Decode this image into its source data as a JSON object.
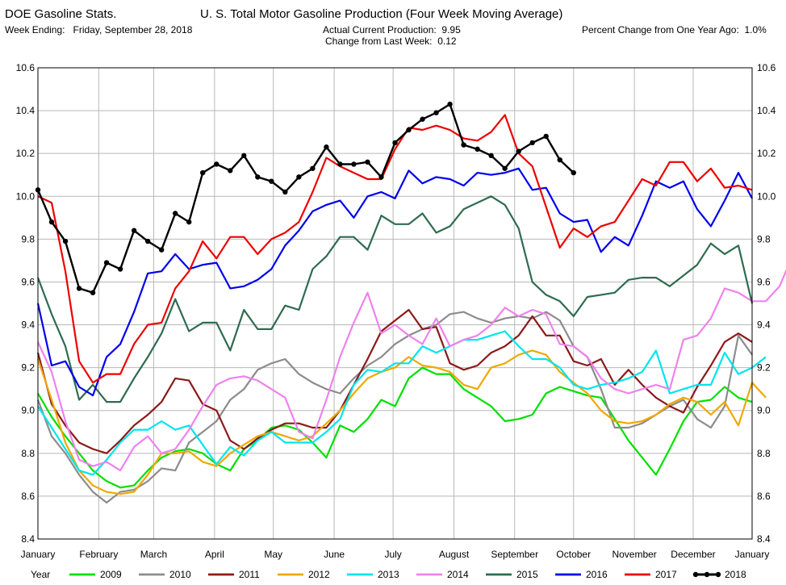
{
  "header": {
    "source": "DOE Gasoline Stats.",
    "week_label": "Week Ending:",
    "week_value": "Friday, September 28, 2018",
    "title": "U. S. Total Motor Gasoline Production (Four Week Moving Average)",
    "production_label": "Actual Current Production:",
    "production_value": "9.95",
    "change_label": "Change from Last Week:",
    "change_value": "0.12",
    "pct_label": "Percent Change from One Year Ago:",
    "pct_value": "1.0%"
  },
  "chart_data": {
    "type": "line",
    "title": "U. S. Total Motor Gasoline Production (Four Week Moving Average)",
    "x_unit": "week of year",
    "x_domain": [
      1,
      53
    ],
    "ylim": [
      8.4,
      10.6
    ],
    "y_ticks": [
      "8.4",
      "8.6",
      "8.8",
      "9.0",
      "9.2",
      "9.4",
      "9.6",
      "9.8",
      "10.0",
      "10.2",
      "10.4",
      "10.6"
    ],
    "y_tick_values": [
      8.4,
      8.6,
      8.8,
      9.0,
      9.2,
      9.4,
      9.6,
      9.8,
      10.0,
      10.2,
      10.4,
      10.6
    ],
    "months": [
      "January",
      "February",
      "March",
      "April",
      "May",
      "June",
      "July",
      "August",
      "September",
      "October",
      "November",
      "December",
      "January"
    ],
    "month_weeks": [
      1,
      5.43,
      9.43,
      13.86,
      18.14,
      22.57,
      26.86,
      31.29,
      35.71,
      40,
      44.43,
      48.71,
      53
    ],
    "grid": true,
    "legend_title": "Year",
    "legend_position": "bottom",
    "series": [
      {
        "name": "2009",
        "color": "#00e000",
        "markers": false,
        "width": 2.2,
        "values": [
          9.08,
          8.97,
          8.88,
          8.8,
          8.72,
          8.67,
          8.64,
          8.65,
          8.72,
          8.78,
          8.81,
          8.82,
          8.8,
          8.75,
          8.72,
          8.82,
          8.86,
          8.92,
          8.93,
          8.91,
          8.85,
          8.78,
          8.93,
          8.9,
          8.96,
          9.05,
          9.02,
          9.15,
          9.2,
          9.17,
          9.17,
          9.1,
          9.06,
          9.02,
          8.95,
          8.96,
          8.98,
          9.08,
          9.11,
          9.09,
          9.07,
          9.06,
          8.96,
          8.86,
          8.78,
          8.7,
          8.82,
          8.95,
          9.04,
          9.05,
          9.11,
          9.06,
          9.04
        ]
      },
      {
        "name": "2010",
        "color": "#8c8c8c",
        "markers": false,
        "width": 2.2,
        "values": [
          9.05,
          8.88,
          8.8,
          8.7,
          8.62,
          8.57,
          8.62,
          8.63,
          8.67,
          8.73,
          8.72,
          8.85,
          8.9,
          8.95,
          9.05,
          9.1,
          9.19,
          9.22,
          9.24,
          9.17,
          9.13,
          9.1,
          9.08,
          9.15,
          9.21,
          9.25,
          9.31,
          9.35,
          9.38,
          9.4,
          9.45,
          9.46,
          9.43,
          9.41,
          9.43,
          9.44,
          9.43,
          9.46,
          9.42,
          9.3,
          9.25,
          9.1,
          8.92,
          8.92,
          8.94,
          8.98,
          9.02,
          9.05,
          8.96,
          8.92,
          9.02,
          9.35,
          9.26
        ]
      },
      {
        "name": "2011",
        "color": "#8b1a1a",
        "markers": false,
        "width": 2.2,
        "values": [
          9.27,
          9.03,
          8.93,
          8.85,
          8.82,
          8.8,
          8.86,
          8.93,
          8.98,
          9.04,
          9.15,
          9.14,
          9.03,
          9.0,
          8.86,
          8.82,
          8.87,
          8.91,
          8.94,
          8.94,
          8.92,
          8.92,
          9.0,
          9.12,
          9.24,
          9.37,
          9.42,
          9.47,
          9.38,
          9.39,
          9.22,
          9.19,
          9.21,
          9.27,
          9.3,
          9.35,
          9.44,
          9.35,
          9.35,
          9.23,
          9.21,
          9.24,
          9.12,
          9.19,
          9.12,
          9.06,
          9.02,
          8.99,
          9.11,
          9.21,
          9.32,
          9.36,
          9.32
        ]
      },
      {
        "name": "2012",
        "color": "#f0a800",
        "markers": false,
        "width": 2.2,
        "values": [
          9.24,
          9.05,
          8.85,
          8.72,
          8.65,
          8.62,
          8.61,
          8.62,
          8.7,
          8.8,
          8.8,
          8.81,
          8.76,
          8.74,
          8.8,
          8.84,
          8.88,
          8.9,
          8.88,
          8.86,
          8.88,
          8.94,
          9.0,
          9.08,
          9.15,
          9.18,
          9.2,
          9.25,
          9.21,
          9.2,
          9.18,
          9.12,
          9.1,
          9.2,
          9.22,
          9.26,
          9.28,
          9.26,
          9.18,
          9.13,
          9.08,
          9.0,
          8.95,
          8.94,
          8.95,
          8.98,
          9.03,
          9.06,
          9.04,
          8.98,
          9.04,
          8.93,
          9.13,
          9.06
        ]
      },
      {
        "name": "2013",
        "color": "#00e5ee",
        "markers": false,
        "width": 2.2,
        "values": [
          9.02,
          8.92,
          8.82,
          8.72,
          8.7,
          8.77,
          8.85,
          8.91,
          8.91,
          8.95,
          8.91,
          8.93,
          8.84,
          8.75,
          8.83,
          8.79,
          8.86,
          8.9,
          8.85,
          8.85,
          8.85,
          8.9,
          8.96,
          9.12,
          9.19,
          9.18,
          9.22,
          9.22,
          9.3,
          9.27,
          9.3,
          9.33,
          9.33,
          9.35,
          9.37,
          9.3,
          9.24,
          9.24,
          9.2,
          9.12,
          9.1,
          9.12,
          9.13,
          9.15,
          9.18,
          9.28,
          9.08,
          9.1,
          9.12,
          9.12,
          9.27,
          9.17,
          9.2,
          9.25
        ]
      },
      {
        "name": "2014",
        "color": "#ee82ee",
        "markers": false,
        "width": 2.2,
        "values": [
          9.32,
          9.18,
          8.95,
          8.77,
          8.74,
          8.76,
          8.72,
          8.83,
          8.88,
          8.8,
          8.82,
          8.91,
          9.02,
          9.12,
          9.15,
          9.16,
          9.14,
          9.1,
          9.06,
          8.9,
          8.87,
          9.05,
          9.25,
          9.41,
          9.55,
          9.36,
          9.4,
          9.35,
          9.31,
          9.43,
          9.3,
          9.33,
          9.35,
          9.4,
          9.48,
          9.44,
          9.47,
          9.45,
          9.31,
          9.3,
          9.25,
          9.15,
          9.1,
          9.08,
          9.1,
          9.12,
          9.1,
          9.33,
          9.35,
          9.43,
          9.57,
          9.55,
          9.51,
          9.51,
          9.58,
          9.73
        ]
      },
      {
        "name": "2015",
        "color": "#2e6b4f",
        "markers": false,
        "width": 2.2,
        "values": [
          9.62,
          9.45,
          9.3,
          9.05,
          9.12,
          9.04,
          9.04,
          9.15,
          9.25,
          9.36,
          9.52,
          9.37,
          9.41,
          9.41,
          9.28,
          9.47,
          9.38,
          9.38,
          9.49,
          9.47,
          9.66,
          9.72,
          9.81,
          9.81,
          9.75,
          9.91,
          9.87,
          9.87,
          9.92,
          9.83,
          9.86,
          9.94,
          9.97,
          10.0,
          9.96,
          9.85,
          9.6,
          9.54,
          9.51,
          9.44,
          9.53,
          9.54,
          9.55,
          9.61,
          9.62,
          9.62,
          9.58,
          9.63,
          9.68,
          9.78,
          9.73,
          9.77,
          9.5
        ]
      },
      {
        "name": "2016",
        "color": "#0000ee",
        "markers": false,
        "width": 2.2,
        "values": [
          9.5,
          9.21,
          9.23,
          9.11,
          9.07,
          9.25,
          9.31,
          9.46,
          9.64,
          9.65,
          9.73,
          9.66,
          9.68,
          9.69,
          9.57,
          9.58,
          9.61,
          9.66,
          9.77,
          9.84,
          9.93,
          9.96,
          9.98,
          9.9,
          10.0,
          10.02,
          9.99,
          10.12,
          10.06,
          10.09,
          10.08,
          10.05,
          10.11,
          10.1,
          10.11,
          10.13,
          10.03,
          10.04,
          9.92,
          9.88,
          9.89,
          9.74,
          9.81,
          9.77,
          9.91,
          10.07,
          10.04,
          10.07,
          9.94,
          9.86,
          9.98,
          10.11,
          9.99
        ]
      },
      {
        "name": "2017",
        "color": "#ee0000",
        "markers": false,
        "width": 2.2,
        "values": [
          10.0,
          9.97,
          9.65,
          9.23,
          9.13,
          9.17,
          9.17,
          9.31,
          9.4,
          9.41,
          9.57,
          9.65,
          9.79,
          9.71,
          9.81,
          9.81,
          9.73,
          9.8,
          9.83,
          9.88,
          10.02,
          10.18,
          10.14,
          10.11,
          10.08,
          10.08,
          10.22,
          10.32,
          10.31,
          10.33,
          10.31,
          10.27,
          10.26,
          10.3,
          10.38,
          10.2,
          10.14,
          9.95,
          9.76,
          9.85,
          9.81,
          9.86,
          9.88,
          9.98,
          10.08,
          10.05,
          10.16,
          10.16,
          10.07,
          10.13,
          10.04,
          10.05,
          10.03
        ]
      },
      {
        "name": "2018",
        "color": "#000000",
        "markers": true,
        "width": 2.4,
        "values": [
          10.03,
          9.88,
          9.79,
          9.57,
          9.55,
          9.69,
          9.66,
          9.84,
          9.79,
          9.75,
          9.92,
          9.88,
          10.11,
          10.15,
          10.12,
          10.19,
          10.09,
          10.07,
          10.02,
          10.09,
          10.13,
          10.23,
          10.15,
          10.15,
          10.16,
          10.09,
          10.25,
          10.31,
          10.36,
          10.39,
          10.43,
          10.24,
          10.22,
          10.19,
          10.13,
          10.21,
          10.25,
          10.28,
          10.17,
          10.11
        ]
      }
    ]
  }
}
